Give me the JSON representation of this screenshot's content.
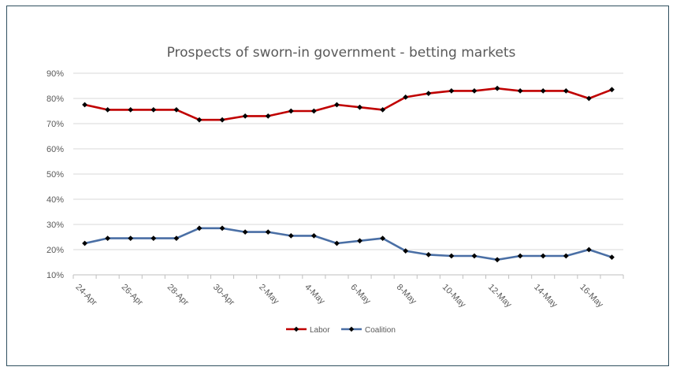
{
  "chart_data": {
    "type": "line",
    "title": "Prospects of sworn-in government - betting markets",
    "xlabel": "",
    "ylabel": "",
    "x": [
      "24-Apr",
      "25-Apr",
      "26-Apr",
      "27-Apr",
      "28-Apr",
      "29-Apr",
      "30-Apr",
      "1-May",
      "2-May",
      "3-May",
      "4-May",
      "5-May",
      "6-May",
      "7-May",
      "8-May",
      "9-May",
      "10-May",
      "11-May",
      "12-May",
      "13-May",
      "14-May",
      "15-May",
      "16-May",
      "17-May"
    ],
    "x_tick_labels": [
      "24-Apr",
      "26-Apr",
      "28-Apr",
      "30-Apr",
      "2-May",
      "4-May",
      "6-May",
      "8-May",
      "10-May",
      "12-May",
      "14-May",
      "16-May"
    ],
    "y_tick_labels": [
      "10%",
      "20%",
      "30%",
      "40%",
      "50%",
      "60%",
      "70%",
      "80%",
      "90%"
    ],
    "ylim": [
      10,
      90
    ],
    "y_unit": "%",
    "grid": true,
    "legend_position": "bottom",
    "series": [
      {
        "name": "Labor",
        "color": "#c00000",
        "values": [
          77.5,
          75.5,
          75.5,
          75.5,
          75.5,
          71.5,
          71.5,
          73,
          73,
          75,
          75,
          77.5,
          76.5,
          75.5,
          80.5,
          82,
          83,
          83,
          84,
          83,
          83,
          83,
          80,
          83.5
        ]
      },
      {
        "name": "Coalition",
        "color": "#4a6fa5",
        "values": [
          22.5,
          24.5,
          24.5,
          24.5,
          24.5,
          28.5,
          28.5,
          27,
          27,
          25.5,
          25.5,
          22.5,
          23.5,
          24.5,
          19.5,
          18,
          17.5,
          17.5,
          16,
          17.5,
          17.5,
          17.5,
          20,
          17
        ]
      }
    ]
  }
}
